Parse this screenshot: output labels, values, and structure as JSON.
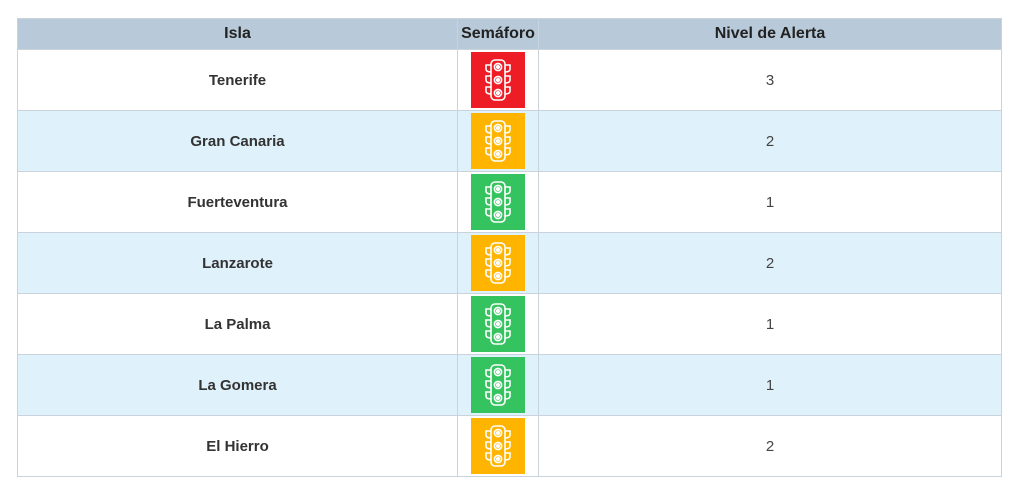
{
  "headers": {
    "isla": "Isla",
    "semaforo": "Semáforo",
    "nivel": "Nivel de Alerta"
  },
  "rows": [
    {
      "isla": "Tenerife",
      "icon": "traffic-light-icon",
      "color": "#ee1c24",
      "nivel": "3"
    },
    {
      "isla": "Gran Canaria",
      "icon": "traffic-light-icon",
      "color": "#ffb400",
      "nivel": "2"
    },
    {
      "isla": "Fuerteventura",
      "icon": "traffic-light-icon",
      "color": "#35c35f",
      "nivel": "1"
    },
    {
      "isla": "Lanzarote",
      "icon": "traffic-light-icon",
      "color": "#ffb400",
      "nivel": "2"
    },
    {
      "isla": "La Palma",
      "icon": "traffic-light-icon",
      "color": "#35c35f",
      "nivel": "1"
    },
    {
      "isla": "La Gomera",
      "icon": "traffic-light-icon",
      "color": "#35c35f",
      "nivel": "1"
    },
    {
      "isla": "El Hierro",
      "icon": "traffic-light-icon",
      "color": "#ffb400",
      "nivel": "2"
    }
  ]
}
